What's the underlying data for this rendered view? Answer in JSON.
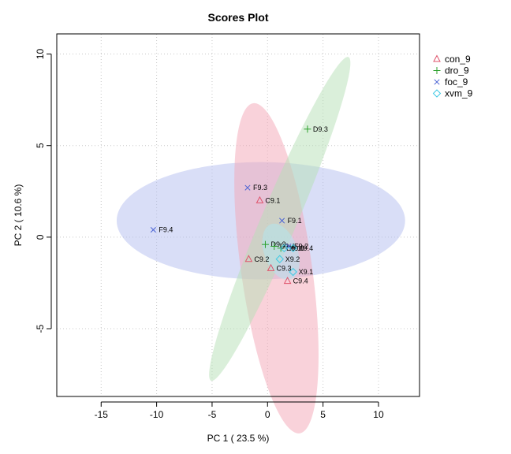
{
  "chart_data": {
    "type": "scatter",
    "title": "Scores Plot",
    "xlabel": "PC 1 ( 23.5 %)",
    "ylabel": "PC 2 ( 10.6 %)",
    "xlim": [
      -19,
      13.7
    ],
    "ylim": [
      -8.7,
      11.1
    ],
    "xticks": [
      -15,
      -10,
      -5,
      0,
      5,
      10
    ],
    "yticks": [
      -5,
      0,
      5,
      10
    ],
    "grid": true,
    "legend_position": "right",
    "series": [
      {
        "name": "con_9",
        "marker": "triangle",
        "color": "#df536b",
        "ellipse_fill": "#f4a6b6",
        "ellipse": {
          "center": [
            0.8,
            -1.7
          ],
          "rx": 3.2,
          "ry": 9.1,
          "angle_deg": -8
        },
        "points": [
          {
            "label": "C9.1",
            "x": -0.7,
            "y": 2.0
          },
          {
            "label": "C9.2",
            "x": -1.7,
            "y": -1.2
          },
          {
            "label": "C9.3",
            "x": 0.3,
            "y": -1.7
          },
          {
            "label": "C9.4",
            "x": 1.8,
            "y": -2.4
          }
        ]
      },
      {
        "name": "dro_9",
        "marker": "plus",
        "color": "#2ca02c",
        "ellipse_fill": "#b5e0b5",
        "ellipse": {
          "center": [
            1.1,
            1.0
          ],
          "rx": 1.6,
          "ry": 9.6,
          "angle_deg": 23
        },
        "points": [
          {
            "label": "D9.3",
            "x": 3.6,
            "y": 5.9
          },
          {
            "label": "D9.2",
            "x": -0.2,
            "y": -0.4
          },
          {
            "label": "D9.1",
            "x": 1.2,
            "y": -0.6
          },
          {
            "label": "D9.4",
            "x": 0.6,
            "y": -0.5
          }
        ]
      },
      {
        "name": "foc_9",
        "marker": "cross",
        "color": "#4a63d4",
        "ellipse_fill": "#b3bdf0",
        "ellipse": {
          "center": [
            -0.6,
            0.9
          ],
          "rx": 13.0,
          "ry": 3.2,
          "angle_deg": 0
        },
        "points": [
          {
            "label": "F9.3",
            "x": -1.8,
            "y": 2.7
          },
          {
            "label": "F9.4",
            "x": -10.3,
            "y": 0.4
          },
          {
            "label": "F9.1",
            "x": 1.3,
            "y": 0.9
          },
          {
            "label": "F9.2",
            "x": 1.9,
            "y": -0.5
          }
        ]
      },
      {
        "name": "xvm_9",
        "marker": "diamond",
        "color": "#3fc9e4",
        "ellipse_fill": "#b0e8f2",
        "ellipse": {
          "center": [
            1.2,
            -0.8
          ],
          "rx": 1.5,
          "ry": 1.6,
          "angle_deg": -20
        },
        "points": [
          {
            "label": "X9.1",
            "x": 2.3,
            "y": -1.9
          },
          {
            "label": "X9.2",
            "x": 1.1,
            "y": -1.2
          },
          {
            "label": "X9.3",
            "x": 1.5,
            "y": -0.6
          },
          {
            "label": "X9.4",
            "x": 2.3,
            "y": -0.6
          }
        ]
      }
    ]
  }
}
